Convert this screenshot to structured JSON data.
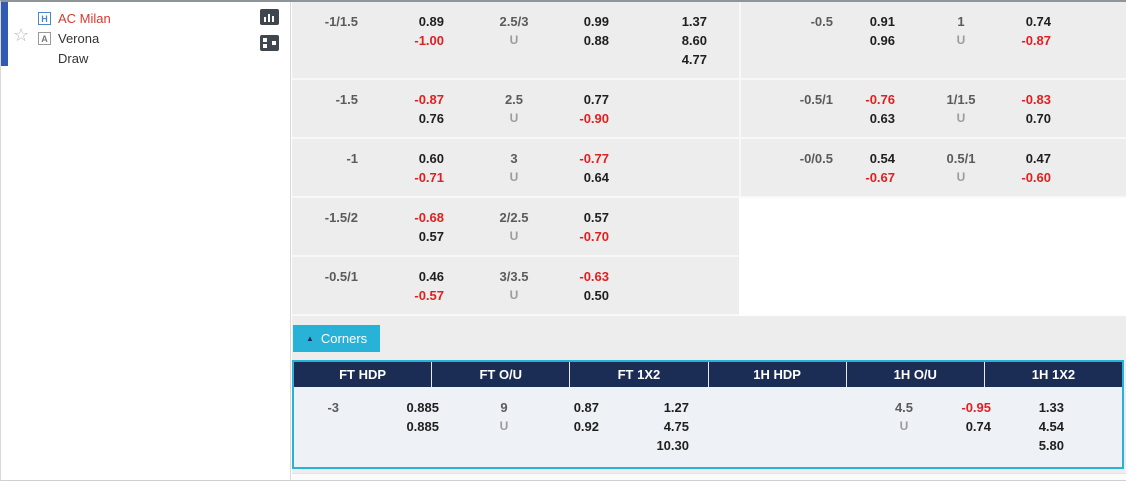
{
  "colors": {
    "accent_cyan": "#29b2d8",
    "header_navy": "#1b2d55",
    "negative_red": "#e02020",
    "home_team_red": "#d9382e"
  },
  "icons": {
    "favorite_star": "☆",
    "corners_collapse": "▲"
  },
  "match": {
    "home": {
      "badge": "H",
      "name": "AC Milan"
    },
    "away": {
      "badge": "A",
      "name": "Verona"
    },
    "draw_label": "Draw"
  },
  "main_odds": {
    "rows": [
      {
        "ft": {
          "hdp": "-1/1.5",
          "hdp_odds_top": "0.89",
          "hdp_odds_bot": "-1.00",
          "ou_line": "2.5/3",
          "ou_u": "U",
          "ou_top": "0.99",
          "ou_bot": "0.88",
          "x12_home": "1.37",
          "x12_draw": "8.60",
          "x12_away": "4.77"
        },
        "fh": {
          "hdp": "-0.5",
          "hdp_odds_top": "0.91",
          "hdp_odds_bot": "0.96",
          "ou_line": "1",
          "ou_u": "U",
          "ou_top": "0.74",
          "ou_bot": "-0.87"
        }
      },
      {
        "ft": {
          "hdp": "-1.5",
          "hdp_odds_top": "-0.87",
          "hdp_odds_bot": "0.76",
          "ou_line": "2.5",
          "ou_u": "U",
          "ou_top": "0.77",
          "ou_bot": "-0.90"
        },
        "fh": {
          "hdp": "-0.5/1",
          "hdp_odds_top": "-0.76",
          "hdp_odds_bot": "0.63",
          "ou_line": "1/1.5",
          "ou_u": "U",
          "ou_top": "-0.83",
          "ou_bot": "0.70"
        }
      },
      {
        "ft": {
          "hdp": "-1",
          "hdp_odds_top": "0.60",
          "hdp_odds_bot": "-0.71",
          "ou_line": "3",
          "ou_u": "U",
          "ou_top": "-0.77",
          "ou_bot": "0.64"
        },
        "fh": {
          "hdp": "-0/0.5",
          "hdp_odds_top": "0.54",
          "hdp_odds_bot": "-0.67",
          "ou_line": "0.5/1",
          "ou_u": "U",
          "ou_top": "0.47",
          "ou_bot": "-0.60"
        }
      },
      {
        "ft": {
          "hdp": "-1.5/2",
          "hdp_odds_top": "-0.68",
          "hdp_odds_bot": "0.57",
          "ou_line": "2/2.5",
          "ou_u": "U",
          "ou_top": "0.57",
          "ou_bot": "-0.70"
        }
      },
      {
        "ft": {
          "hdp": "-0.5/1",
          "hdp_odds_top": "0.46",
          "hdp_odds_bot": "-0.57",
          "ou_line": "3/3.5",
          "ou_u": "U",
          "ou_top": "-0.63",
          "ou_bot": "0.50"
        }
      }
    ]
  },
  "corners": {
    "tab_label": "Corners",
    "headers": [
      "FT HDP",
      "FT O/U",
      "FT 1X2",
      "1H HDP",
      "1H O/U",
      "1H 1X2"
    ],
    "row": {
      "ft_hdp_line": "-3",
      "ft_hdp_top": "0.885",
      "ft_hdp_bot": "0.885",
      "ft_ou_line": "9",
      "ft_ou_u": "U",
      "ft_ou_top": "0.87",
      "ft_ou_bot": "0.92",
      "ft_x12": [
        "1.27",
        "4.75",
        "10.30"
      ],
      "fh_ou_line": "4.5",
      "fh_ou_u": "U",
      "fh_ou_top": "-0.95",
      "fh_ou_bot": "0.74",
      "fh_x12": [
        "1.33",
        "4.54",
        "5.80"
      ]
    }
  }
}
